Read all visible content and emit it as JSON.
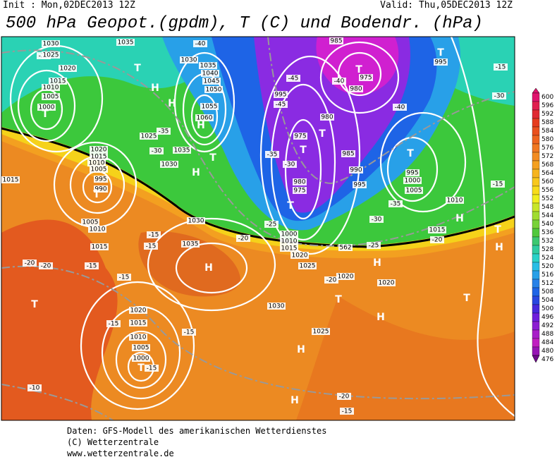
{
  "header": {
    "init": "Init : Mon,02DEC2013 12Z",
    "valid": "Valid: Thu,05DEC2013 12Z",
    "title": "500 hPa Geopot.(gpdm), T (C) und Bodendr. (hPa)"
  },
  "map": {
    "labels": [
      "1030",
      "1035",
      "-35",
      "1025",
      "T",
      "1020",
      "H",
      "1015",
      "1010",
      "1005",
      "1000",
      "T",
      "-40",
      "1030",
      "1035",
      "1040",
      "1045",
      "1050",
      "1055",
      "H",
      "1060",
      "H",
      "1025",
      "-35",
      "-30",
      "1035",
      "T",
      "H",
      "1030",
      "1020",
      "1015",
      "1010",
      "1005",
      "995",
      "990",
      "T",
      "1015",
      "1005",
      "1010",
      "1015",
      "-20",
      "-20",
      "-15",
      "-15",
      "-15",
      "1030",
      "1035",
      "H",
      "-15",
      "T",
      "1020",
      "-15",
      "1015",
      "1010",
      "1005",
      "1000",
      "T",
      "-15",
      "-15",
      "-10",
      "1030",
      "1025",
      "H",
      "H",
      "-20",
      "-15",
      "985",
      "T",
      "-40",
      "975",
      "980",
      "-45",
      "-45",
      "995",
      "980",
      "975",
      "T",
      "T",
      "985",
      "-35",
      "-30",
      "990",
      "980",
      "975",
      "T",
      "995",
      "T",
      "995",
      "1000",
      "1005",
      "-40",
      "T",
      "995",
      "-15",
      "-30",
      "-15",
      "1010",
      "-35",
      "-30",
      "H",
      "1015",
      "T",
      "H",
      "-20",
      "-25",
      "562",
      "1000",
      "1010",
      "1015",
      "-25",
      "-20",
      "1020",
      "1025",
      "H",
      "1020",
      "-20",
      "1020",
      "T",
      "H",
      "T"
    ]
  },
  "colorbar": {
    "labels": [
      600,
      596,
      592,
      588,
      584,
      580,
      576,
      572,
      568,
      564,
      560,
      556,
      552,
      548,
      544,
      540,
      536,
      532,
      528,
      524,
      520,
      516,
      512,
      508,
      504,
      500,
      496,
      492,
      488,
      484,
      480,
      476
    ]
  },
  "footer": [
    "Daten: GFS-Modell des amerikanischen Wetterdienstes",
    "(C) Wetterzentrale",
    "www.wetterzentrale.de"
  ]
}
